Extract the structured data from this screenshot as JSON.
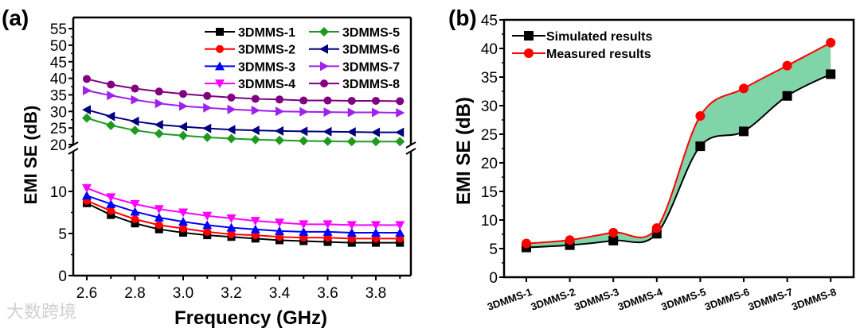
{
  "watermark": "大数跨境",
  "chart_data": [
    {
      "panel_label": "(a)",
      "type": "line",
      "xlabel": "Frequency (GHz)",
      "ylabel": "EMI SE (dB)",
      "xlim": [
        2.55,
        3.95
      ],
      "ylim_lower": [
        0,
        15
      ],
      "ylim_upper": [
        20,
        57
      ],
      "broken_axis": true,
      "xticks": [
        "2.6",
        "2.8",
        "3.0",
        "3.2",
        "3.4",
        "3.6",
        "3.8"
      ],
      "yticks_lower": [
        "0",
        "5",
        "10"
      ],
      "yticks_upper": [
        "20",
        "25",
        "30",
        "35",
        "40",
        "45",
        "50",
        "55"
      ],
      "legend_position": "top-right",
      "x": [
        2.6,
        2.7,
        2.8,
        2.9,
        3.0,
        3.1,
        3.2,
        3.3,
        3.4,
        3.5,
        3.6,
        3.7,
        3.8,
        3.9
      ],
      "series": [
        {
          "name": "3DMMS-1",
          "color": "#000000",
          "marker": "square",
          "values": [
            8.6,
            7.2,
            6.2,
            5.5,
            5.1,
            4.8,
            4.6,
            4.4,
            4.2,
            4.1,
            4.0,
            3.9,
            3.9,
            3.9
          ]
        },
        {
          "name": "3DMMS-2",
          "color": "#ff0000",
          "marker": "circle",
          "values": [
            8.9,
            7.7,
            6.7,
            6.0,
            5.6,
            5.2,
            4.9,
            4.8,
            4.6,
            4.5,
            4.5,
            4.4,
            4.4,
            4.4
          ]
        },
        {
          "name": "3DMMS-3",
          "color": "#0000ff",
          "marker": "triangle-up",
          "values": [
            9.5,
            8.5,
            7.6,
            6.9,
            6.4,
            6.0,
            5.7,
            5.5,
            5.3,
            5.2,
            5.2,
            5.1,
            5.1,
            5.1
          ]
        },
        {
          "name": "3DMMS-4",
          "color": "#ff00ff",
          "marker": "triangle-down",
          "values": [
            10.4,
            9.3,
            8.5,
            7.9,
            7.5,
            7.1,
            6.8,
            6.5,
            6.3,
            6.1,
            6.1,
            6.0,
            6.0,
            6.0
          ]
        },
        {
          "name": "3DMMS-5",
          "color": "#1f9a1f",
          "marker": "diamond",
          "values": [
            28.0,
            25.8,
            24.3,
            23.3,
            22.7,
            22.2,
            21.8,
            21.5,
            21.3,
            21.1,
            21.0,
            20.9,
            20.9,
            20.9
          ]
        },
        {
          "name": "3DMMS-6",
          "color": "#000080",
          "marker": "triangle-left",
          "values": [
            30.5,
            28.5,
            27.0,
            26.0,
            25.4,
            24.9,
            24.5,
            24.3,
            24.1,
            24.0,
            23.9,
            23.8,
            23.7,
            23.7
          ]
        },
        {
          "name": "3DMMS-7",
          "color": "#a020f0",
          "marker": "triangle-right",
          "values": [
            36.3,
            34.8,
            33.5,
            32.4,
            31.6,
            31.1,
            30.6,
            30.3,
            30.0,
            29.9,
            29.8,
            29.7,
            29.7,
            29.6
          ]
        },
        {
          "name": "3DMMS-8",
          "color": "#800080",
          "marker": "circle",
          "values": [
            39.8,
            38.1,
            36.9,
            36.0,
            35.3,
            34.7,
            34.2,
            33.8,
            33.6,
            33.3,
            33.3,
            33.2,
            33.2,
            33.1
          ]
        }
      ]
    },
    {
      "panel_label": "(b)",
      "type": "line",
      "xlabel": "",
      "ylabel": "EMI SE (dB)",
      "ylim": [
        0,
        45
      ],
      "yticks": [
        "0",
        "5",
        "10",
        "15",
        "20",
        "25",
        "30",
        "35",
        "40",
        "45"
      ],
      "categories": [
        "3DMMS-1",
        "3DMMS-2",
        "3DMMS-3",
        "3DMMS-4",
        "3DMMS-5",
        "3DMMS-6",
        "3DMMS-7",
        "3DMMS-8"
      ],
      "legend_position": "top-left",
      "fill_between_color": "#7fd4a8",
      "series": [
        {
          "name": "Simulated results",
          "color": "#000000",
          "marker": "square",
          "values": [
            5.2,
            5.6,
            6.4,
            7.6,
            22.9,
            25.5,
            31.7,
            35.5
          ]
        },
        {
          "name": "Measured results",
          "color": "#ff0000",
          "marker": "circle",
          "values": [
            5.9,
            6.5,
            7.8,
            8.6,
            28.2,
            33.0,
            37.0,
            41.0
          ]
        }
      ]
    }
  ]
}
